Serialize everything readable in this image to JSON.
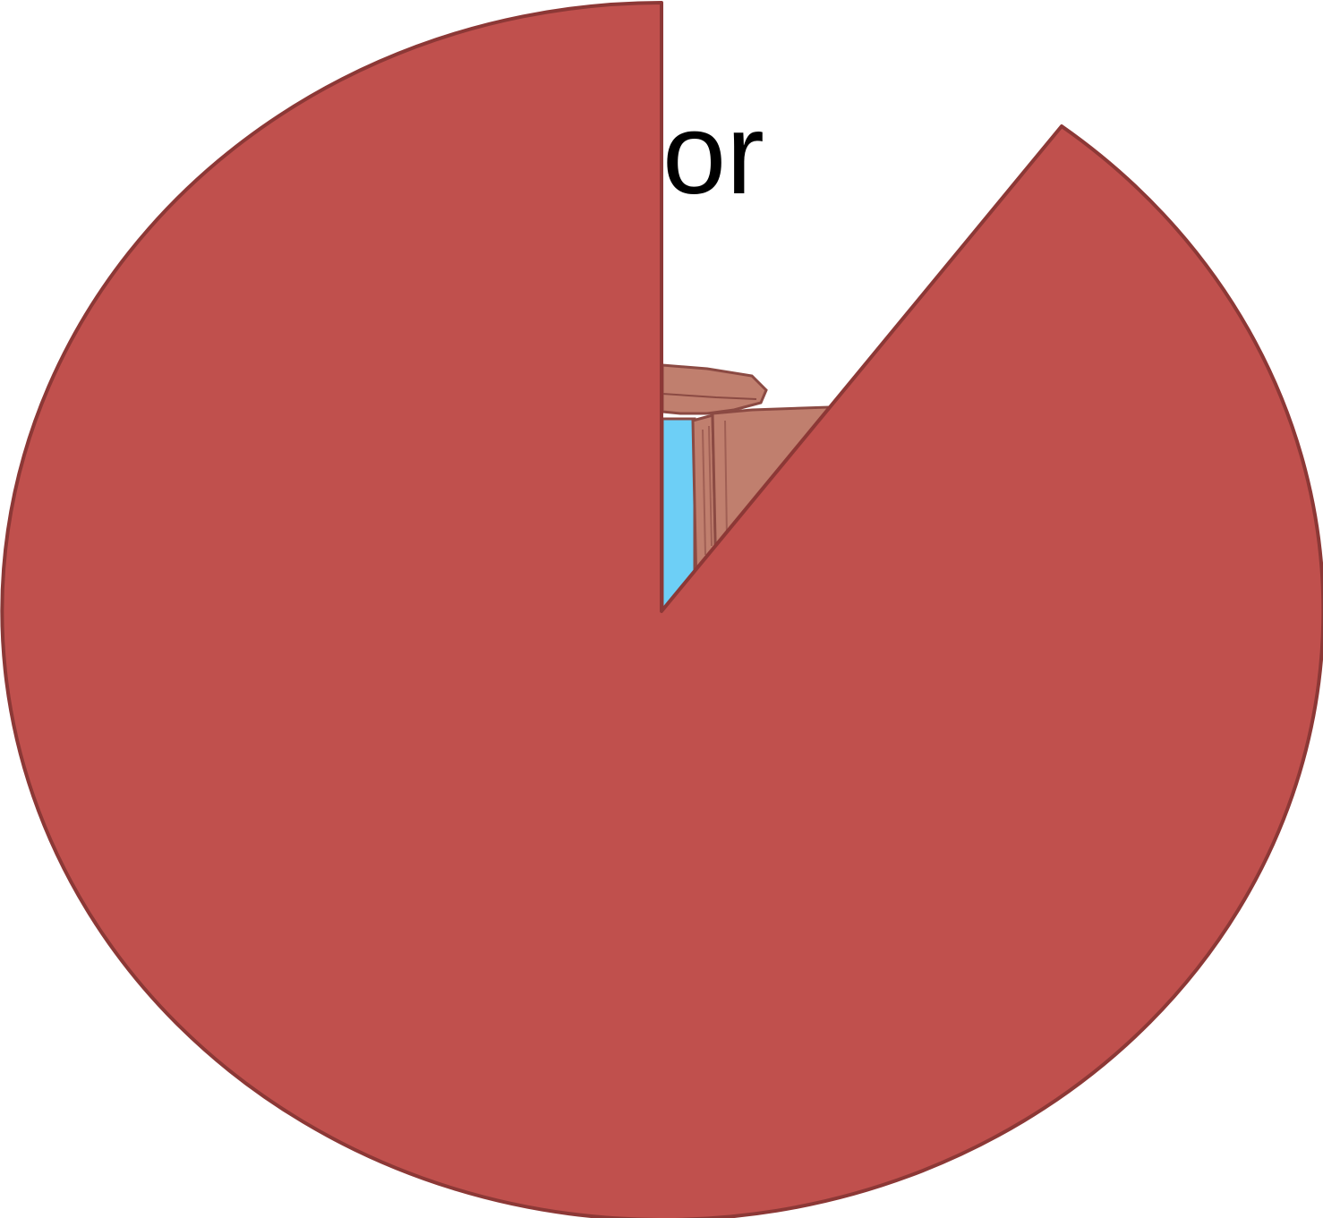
{
  "background": "#ffffff",
  "visible_text": {
    "partial_word": "or"
  },
  "pie_shape": {
    "fill": "#c0504d",
    "stroke": "#8c3836",
    "description_icon": "pie-with-wedge-removed"
  },
  "underlying_art": {
    "icon": "door-frame-illustration",
    "frame_color": "#c07f6e",
    "frame_dark": "#8b4a43",
    "glass_color": "#6dcff6"
  }
}
